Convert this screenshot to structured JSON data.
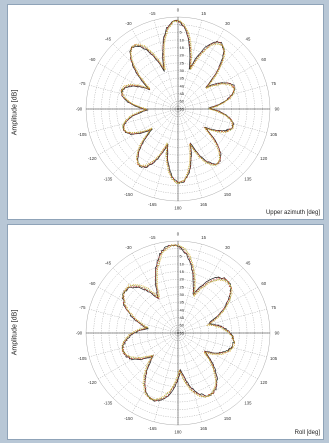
{
  "chart_data": [
    {
      "type": "polar",
      "xlabel": "Upper azimuth  [deg]",
      "ylabel": "Amplitude [dB]",
      "angle_ticks": [
        "0",
        "15",
        "30",
        "45",
        "60",
        "75",
        "90",
        "105",
        "120",
        "135",
        "150",
        "165",
        "180",
        "-165",
        "-150",
        "-135",
        "-120",
        "-105",
        "-90",
        "-75",
        "-60",
        "-45",
        "-30",
        "-15"
      ],
      "radial_ticks": [
        "0",
        "5",
        "10",
        "15",
        "20",
        "25",
        "30",
        "35",
        "40",
        "45",
        "50",
        "55"
      ],
      "grid": true,
      "series": [
        {
          "color": "#1f1f1f",
          "lobes": 10,
          "seed": 1
        },
        {
          "color": "#c0392b",
          "lobes": 10,
          "seed": 2
        },
        {
          "color": "#7fa64a",
          "lobes": 10,
          "seed": 3
        },
        {
          "color": "#d4a017",
          "lobes": 10,
          "seed": 4
        }
      ]
    },
    {
      "type": "polar",
      "xlabel": "Roll  [deg]",
      "ylabel": "Amplitude [dB]",
      "angle_ticks": [
        "0",
        "15",
        "30",
        "45",
        "60",
        "75",
        "90",
        "105",
        "120",
        "135",
        "150",
        "165",
        "180",
        "-165",
        "-150",
        "-135",
        "-120",
        "-105",
        "-90",
        "-75",
        "-60",
        "-45",
        "-30",
        "-15"
      ],
      "radial_ticks": [
        "0",
        "5",
        "10",
        "15",
        "20",
        "25",
        "30",
        "35",
        "40",
        "45",
        "50",
        "55"
      ],
      "grid": true,
      "series": [
        {
          "color": "#1f1f1f",
          "lobes": 7,
          "seed": 5
        },
        {
          "color": "#c0392b",
          "lobes": 7,
          "seed": 6
        },
        {
          "color": "#7fa64a",
          "lobes": 7,
          "seed": 7
        },
        {
          "color": "#d4a017",
          "lobes": 7,
          "seed": 8
        }
      ]
    }
  ]
}
